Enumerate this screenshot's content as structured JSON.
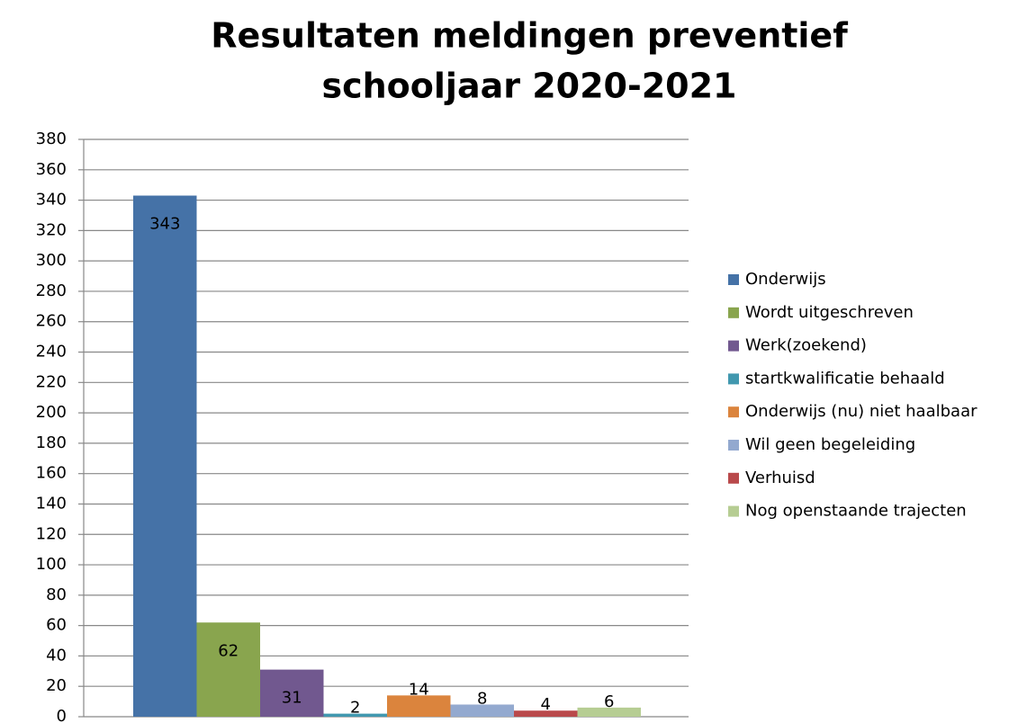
{
  "chart_data": {
    "type": "bar",
    "title": [
      "Resultaten meldingen preventief",
      "schooljaar 2020-2021"
    ],
    "categories": [
      null
    ],
    "series": [
      {
        "name": "Onderwijs",
        "color": "#4572a7",
        "values": [
          343
        ]
      },
      {
        "name": "Wordt uitgeschreven",
        "color": "#89a54e",
        "values": [
          62
        ]
      },
      {
        "name": "Werk(zoekend)",
        "color": "#71588f",
        "values": [
          31
        ]
      },
      {
        "name": "startkwalificatie behaald",
        "color": "#4198af",
        "values": [
          2
        ]
      },
      {
        "name": "Onderwijs (nu) niet haalbaar",
        "color": "#db843d",
        "values": [
          14
        ]
      },
      {
        "name": "Wil geen begeleiding",
        "color": "#93a9cf",
        "values": [
          8
        ]
      },
      {
        "name": "Verhuisd",
        "color": "#b9494b",
        "values": [
          4
        ]
      },
      {
        "name": "Nog openstaande trajecten",
        "color": "#b6cd93",
        "values": [
          6
        ]
      }
    ],
    "ylim": [
      0,
      380
    ],
    "yticks": [
      0,
      20,
      40,
      60,
      80,
      100,
      120,
      140,
      160,
      180,
      200,
      220,
      240,
      260,
      280,
      300,
      320,
      340,
      360,
      380
    ],
    "grid": true,
    "legend": "right"
  }
}
